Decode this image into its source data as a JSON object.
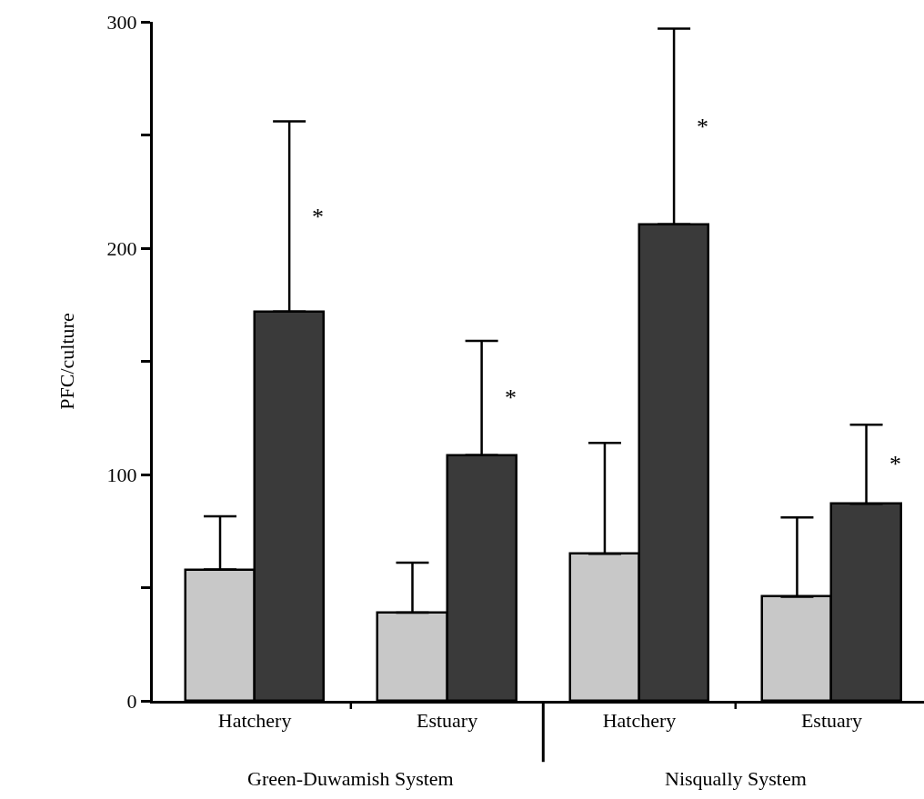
{
  "chart_data": {
    "type": "bar",
    "ylabel": "PFC/culture",
    "categories": [
      "Hatchery",
      "Estuary",
      "Hatchery",
      "Estuary"
    ],
    "series": [
      {
        "color": "#c8c8c8",
        "values": [
          58,
          39,
          65,
          46
        ],
        "errors": [
          [
            58,
            81.5
          ],
          [
            39,
            61
          ],
          [
            65,
            114
          ],
          [
            46,
            81
          ]
        ]
      },
      {
        "color": "#3a3a3a",
        "values": [
          172,
          108.5,
          210.5,
          87
        ],
        "errors": [
          [
            172,
            256
          ],
          [
            108.5,
            159
          ],
          [
            210.5,
            297
          ],
          [
            87,
            122
          ]
        ]
      }
    ],
    "ylim": [
      0,
      300
    ],
    "yticks": [
      0,
      {
        "value": 50,
        "label": null
      },
      100,
      {
        "value": 150,
        "label": null
      },
      200,
      {
        "value": 250,
        "label": null
      },
      300
    ],
    "annotations": [
      "*",
      "*",
      "*",
      "*",
      "Green-Duwamish System",
      "Nisqually System"
    ]
  }
}
